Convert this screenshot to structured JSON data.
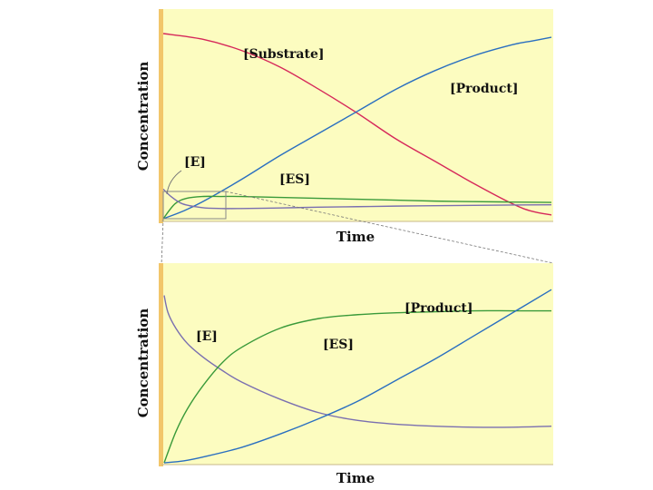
{
  "chart_data": [
    {
      "type": "line",
      "xlabel": "Time",
      "ylabel": "Concentration",
      "x_range": [
        0,
        100
      ],
      "y_range": [
        0,
        100
      ],
      "grid": false,
      "series": [
        {
          "name": "[Substrate]",
          "color": "#d6285a",
          "x": [
            0,
            10,
            20,
            30,
            40,
            50,
            60,
            70,
            80,
            90,
            95,
            100
          ],
          "y": [
            100,
            97,
            91,
            82,
            70,
            57,
            43,
            31,
            19,
            8,
            4,
            2
          ]
        },
        {
          "name": "[Product]",
          "color": "#2a6fc0",
          "x": [
            0,
            5,
            10,
            20,
            30,
            40,
            50,
            60,
            70,
            80,
            90,
            95,
            100
          ],
          "y": [
            0,
            4,
            9,
            21,
            34,
            46,
            58,
            70,
            80,
            88,
            94,
            96,
            98
          ]
        },
        {
          "name": "[ES]",
          "color": "#3a9a3a",
          "x": [
            0,
            3,
            6,
            10,
            15,
            20,
            30,
            40,
            50,
            60,
            70,
            80,
            90,
            100
          ],
          "y": [
            0,
            8,
            11,
            12,
            12,
            12,
            11.5,
            11,
            10.5,
            10,
            9.5,
            9.2,
            9,
            8.8
          ]
        },
        {
          "name": "[E]",
          "color": "#7a6fb0",
          "x": [
            0,
            2,
            5,
            10,
            15,
            20,
            30,
            40,
            50,
            60,
            70,
            80,
            90,
            100
          ],
          "y": [
            16,
            12,
            8,
            6,
            5.5,
            5.5,
            5.8,
            6.2,
            6.5,
            6.8,
            7,
            7.2,
            7.4,
            7.5
          ]
        }
      ],
      "annotations": [
        "[Substrate]",
        "[Product]",
        "[E]",
        "[ES]"
      ]
    },
    {
      "type": "line",
      "xlabel": "Time",
      "ylabel": "Concentration",
      "x_range": [
        0,
        100
      ],
      "y_range": [
        0,
        100
      ],
      "grid": false,
      "series": [
        {
          "name": "[E]",
          "color": "#7a6fb0",
          "x": [
            0,
            1,
            3,
            6,
            10,
            15,
            20,
            30,
            40,
            50,
            60,
            70,
            80,
            90,
            100
          ],
          "y": [
            87,
            78,
            70,
            62,
            55,
            48,
            42,
            33,
            26,
            22,
            20,
            19,
            18.5,
            18.5,
            19
          ]
        },
        {
          "name": "[ES]",
          "color": "#3a9a3a",
          "x": [
            0,
            3,
            6,
            10,
            15,
            20,
            30,
            40,
            50,
            60,
            70,
            80,
            90,
            100
          ],
          "y": [
            0,
            16,
            28,
            40,
            52,
            60,
            70,
            75,
            77,
            78,
            78.5,
            79,
            79,
            79
          ]
        },
        {
          "name": "[Product]",
          "color": "#2a6fc0",
          "x": [
            0,
            5,
            10,
            20,
            30,
            40,
            50,
            60,
            70,
            80,
            90,
            100
          ],
          "y": [
            0,
            1,
            3,
            8,
            15,
            23,
            32,
            43,
            54,
            66,
            78,
            90
          ]
        }
      ],
      "annotations": [
        "[Product]",
        "[E]",
        "[ES]"
      ]
    }
  ]
}
